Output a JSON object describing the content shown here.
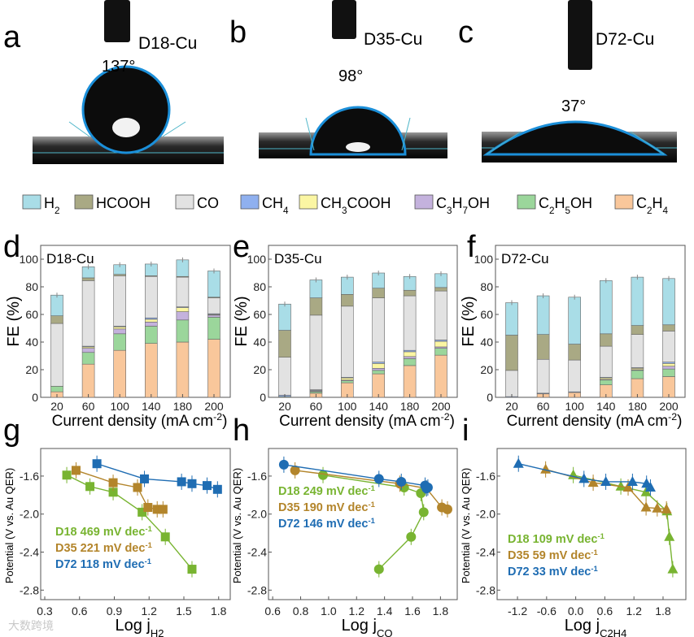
{
  "panel_letters": [
    "a",
    "b",
    "c",
    "d",
    "e",
    "f",
    "g",
    "h",
    "i"
  ],
  "contact_angle": [
    {
      "sample": "D18-Cu",
      "angle": "137°"
    },
    {
      "sample": "D35-Cu",
      "angle": "98°"
    },
    {
      "sample": "D72-Cu",
      "angle": "37°"
    }
  ],
  "legend": [
    {
      "label": "H_{2}",
      "color": "#a9dde7"
    },
    {
      "label": "HCOOH",
      "color": "#a9a984"
    },
    {
      "label": "CO",
      "color": "#e2e2e2"
    },
    {
      "label": "CH_{4}",
      "color": "#8fb0ef"
    },
    {
      "label": "CH_{3}COOH",
      "color": "#fbf6a3"
    },
    {
      "label": "C_{3}H_{7}OH",
      "color": "#c4b2dd"
    },
    {
      "label": "C_{2}H_{5}OH",
      "color": "#9bd69b"
    },
    {
      "label": "C_{2}H_{4}",
      "color": "#f9c79b"
    }
  ],
  "chart_data": [
    {
      "type": "bar",
      "stacked": true,
      "title": "D18-Cu",
      "xlabel": "Current density (mA cm^{-2})",
      "ylabel": "FE (%)",
      "ylim": [
        0,
        110
      ],
      "yticks": [
        0,
        20,
        40,
        60,
        80,
        100
      ],
      "categories": [
        "20",
        "60",
        "100",
        "140",
        "180",
        "200"
      ],
      "series": [
        {
          "name": "C2H4",
          "values": [
            4,
            24,
            34,
            39,
            40,
            42
          ]
        },
        {
          "name": "C2H5OH",
          "values": [
            4,
            8.5,
            12,
            12.5,
            16,
            16
          ]
        },
        {
          "name": "C3H7OH",
          "values": [
            0,
            3,
            3.5,
            3,
            6,
            1.5
          ]
        },
        {
          "name": "CH3COOH",
          "values": [
            0,
            1,
            1.5,
            2,
            3,
            0.5
          ]
        },
        {
          "name": "CH4",
          "values": [
            0,
            0.5,
            0.5,
            1,
            0.5,
            0.5
          ]
        },
        {
          "name": "CO",
          "values": [
            45.5,
            47.5,
            36.5,
            30,
            21.5,
            11.5
          ]
        },
        {
          "name": "HCOOH",
          "values": [
            5.5,
            2,
            1,
            0.5,
            0.5,
            0.5
          ]
        },
        {
          "name": "H2",
          "values": [
            15,
            8,
            7,
            8.5,
            12,
            19
          ]
        }
      ]
    },
    {
      "type": "bar",
      "stacked": true,
      "title": "D35-Cu",
      "xlabel": "Current density (mA cm^{-2})",
      "ylabel": "FE (%)",
      "ylim": [
        0,
        110
      ],
      "yticks": [
        0,
        20,
        40,
        60,
        80,
        100
      ],
      "categories": [
        "20",
        "60",
        "100",
        "140",
        "180",
        "200"
      ],
      "series": [
        {
          "name": "C2H4",
          "values": [
            0,
            3,
            10.5,
            17,
            23,
            30.5
          ]
        },
        {
          "name": "C2H5OH",
          "values": [
            0.5,
            1,
            1.5,
            2.5,
            5,
            5
          ]
        },
        {
          "name": "C3H7OH",
          "values": [
            0,
            0.5,
            0.5,
            1.5,
            1.5,
            1
          ]
        },
        {
          "name": "CH3COOH",
          "values": [
            0,
            0.5,
            1.5,
            3.5,
            3.5,
            4
          ]
        },
        {
          "name": "CH4",
          "values": [
            1,
            0.5,
            0.5,
            1,
            1,
            1
          ]
        },
        {
          "name": "CO",
          "values": [
            27.5,
            54,
            51.5,
            46.5,
            39.5,
            35.5
          ]
        },
        {
          "name": "HCOOH",
          "values": [
            19.5,
            12.5,
            8.5,
            7,
            4,
            2.5
          ]
        },
        {
          "name": "H2",
          "values": [
            19,
            13,
            12.5,
            11,
            10,
            10
          ]
        }
      ]
    },
    {
      "type": "bar",
      "stacked": true,
      "title": "D72-Cu",
      "xlabel": "Current density (mA cm^{-2})",
      "ylabel": "FE (%)",
      "ylim": [
        0,
        110
      ],
      "yticks": [
        0,
        20,
        40,
        60,
        80,
        100
      ],
      "categories": [
        "20",
        "60",
        "100",
        "140",
        "180",
        "200"
      ],
      "series": [
        {
          "name": "C2H4",
          "values": [
            0,
            2.5,
            3.5,
            9,
            13.5,
            15
          ]
        },
        {
          "name": "C2H5OH",
          "values": [
            0,
            0,
            0,
            3.5,
            6,
            5.5
          ]
        },
        {
          "name": "C3H7OH",
          "values": [
            0,
            0,
            0,
            0.5,
            0.5,
            2
          ]
        },
        {
          "name": "CH3COOH",
          "values": [
            0,
            0,
            0,
            1,
            1,
            2
          ]
        },
        {
          "name": "CH4",
          "values": [
            0.5,
            0.5,
            0.5,
            0.5,
            0.5,
            1
          ]
        },
        {
          "name": "CO",
          "values": [
            19,
            24.5,
            23,
            22.5,
            24,
            22.5
          ]
        },
        {
          "name": "HCOOH",
          "values": [
            25.5,
            18,
            11.5,
            9,
            6.5,
            4.5
          ]
        },
        {
          "name": "H2",
          "values": [
            23.5,
            28,
            34,
            38.5,
            35,
            33.5
          ]
        }
      ]
    },
    {
      "type": "line",
      "marker": "square",
      "xlabel": "Log j_{H2}",
      "ylabel": "Potential (V vs. Au QER)",
      "xlim": [
        0.265,
        1.9
      ],
      "ylim": [
        -2.9,
        -1.31
      ],
      "xticks": [
        "0.3",
        "0.6",
        "0.9",
        "1.2",
        "1.5",
        "1.8"
      ],
      "yticks": [
        "-1.6",
        "-2.0",
        "-2.4",
        "-2.8"
      ],
      "series": [
        {
          "name": "D18",
          "slope": "D18 469 mV dec",
          "sup": "-1",
          "color": "#78b431",
          "x": [
            0.49,
            0.69,
            0.89,
            1.14,
            1.34,
            1.57
          ],
          "y": [
            -1.59,
            -1.71,
            -1.77,
            -1.98,
            -2.24,
            -2.58
          ]
        },
        {
          "name": "D35",
          "slope": "D35 221 mV dec",
          "sup": "-1",
          "color": "#b3852b",
          "x": [
            0.57,
            0.89,
            1.1,
            1.19,
            1.27,
            1.32
          ],
          "y": [
            -1.54,
            -1.67,
            -1.72,
            -1.93,
            -1.95,
            -1.95
          ]
        },
        {
          "name": "D72",
          "slope": "D72 118 mV dec",
          "sup": "-1",
          "color": "#1f6db3",
          "x": [
            0.75,
            1.16,
            1.48,
            1.57,
            1.7,
            1.79
          ],
          "y": [
            -1.47,
            -1.63,
            -1.66,
            -1.68,
            -1.7,
            -1.74
          ]
        }
      ]
    },
    {
      "type": "line",
      "marker": "circle",
      "xlabel": "Log j_{CO}",
      "ylabel": "Potential (V vs. Au QER)",
      "xlim": [
        0.57,
        1.92
      ],
      "ylim": [
        -2.9,
        -1.31
      ],
      "xticks": [
        "0.6",
        "0.8",
        "1.0",
        "1.2",
        "1.4",
        "1.6",
        "1.8"
      ],
      "yticks": [
        "-1.6",
        "-2.0",
        "-2.4",
        "-2.8"
      ],
      "series": [
        {
          "name": "D18",
          "slope": "D18 249 mV dec",
          "sup": "-1",
          "color": "#78b431",
          "x": [
            0.96,
            1.54,
            1.66,
            1.68,
            1.59,
            1.36
          ],
          "y": [
            -1.59,
            -1.72,
            -1.78,
            -1.98,
            -2.24,
            -2.58
          ]
        },
        {
          "name": "D35",
          "slope": "D35 190 mV dec",
          "sup": "-1",
          "color": "#b3852b",
          "x": [
            0.76,
            1.51,
            1.7,
            1.81,
            1.85
          ],
          "y": [
            -1.54,
            -1.68,
            -1.73,
            -1.93,
            -1.95
          ]
        },
        {
          "name": "D72",
          "slope": "D72 146 mV dec",
          "sup": "-1",
          "color": "#1f6db3",
          "x": [
            0.68,
            1.36,
            1.52,
            1.69,
            1.7,
            1.71
          ],
          "y": [
            -1.48,
            -1.63,
            -1.66,
            -1.7,
            -1.73,
            -1.72
          ]
        }
      ]
    },
    {
      "type": "line",
      "marker": "triangle",
      "xlabel": "Log j_{C2H4}",
      "ylabel": "Potential (V vs. Au QER)",
      "xlim": [
        -1.62,
        2.27
      ],
      "ylim": [
        -2.9,
        -1.31
      ],
      "xticks": [
        "-1.2",
        "-0.6",
        "0.0",
        "0.6",
        "1.2",
        "1.8"
      ],
      "yticks": [
        "-1.6",
        "-2.0",
        "-2.4",
        "-2.8"
      ],
      "series": [
        {
          "name": "D18",
          "slope": "D18 109 mV dec",
          "sup": "-1",
          "color": "#78b431",
          "x": [
            -0.05,
            0.93,
            1.45,
            1.88,
            1.93,
            2.0
          ],
          "y": [
            -1.59,
            -1.71,
            -1.77,
            -1.97,
            -2.24,
            -2.58
          ]
        },
        {
          "name": "D35",
          "slope": "D35 59 mV dec",
          "sup": "-1",
          "color": "#b3852b",
          "x": [
            -0.62,
            0.36,
            1.08,
            1.45,
            1.68,
            1.87
          ],
          "y": [
            -1.53,
            -1.67,
            -1.72,
            -1.93,
            -1.94,
            -1.95
          ]
        },
        {
          "name": "D72",
          "slope": "D72 33 mV dec",
          "sup": "-1",
          "color": "#1f6db3",
          "x": [
            -1.18,
            0.17,
            0.62,
            1.17,
            1.46,
            1.54
          ],
          "y": [
            -1.47,
            -1.63,
            -1.66,
            -1.66,
            -1.68,
            -1.72
          ]
        }
      ]
    }
  ],
  "watermark": "大数跨境"
}
